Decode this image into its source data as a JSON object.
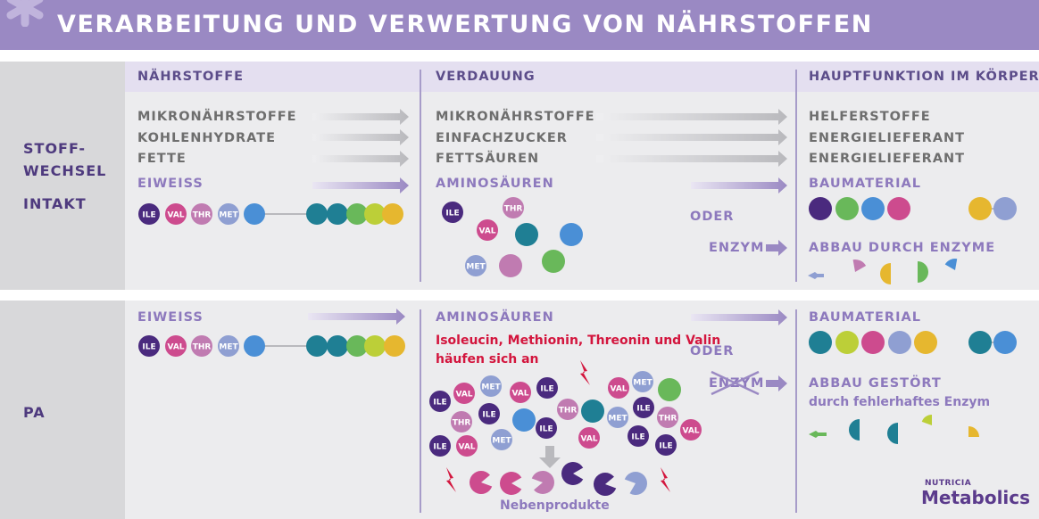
{
  "title": "VERARBEITUNG UND VERWERTUNG VON NÄHRSTOFFEN",
  "columns": {
    "naehrstoffe": "NÄHRSTOFFE",
    "verdauung": "VERDAUUNG",
    "hauptfunktion": "HAUPTFUNKTION IM KÖRPER"
  },
  "row1": {
    "label_line1": "STOFF-",
    "label_line2": "WECHSEL",
    "label_line3": "INTAKT",
    "nutrients": [
      "MIKRONÄHRSTOFFE",
      "KOHLENHYDRATE",
      "FETTE",
      "EIWEISS"
    ],
    "digestion": [
      "MIKRONÄHRSTOFFE",
      "EINFACHZUCKER",
      "FETTSÄUREN",
      "AMINOSÄUREN"
    ],
    "functions": [
      "HELFERSTOFFE",
      "ENERGIELIEFERANT",
      "ENERGIELIEFERANT",
      "BAUMATERIAL"
    ],
    "oder": "ODER",
    "enzym": "ENZYM",
    "abbau": "ABBAU DURCH ENZYME"
  },
  "row2": {
    "label": "PA",
    "eiweiss": "EIWEISS",
    "aminosaeuren": "AMINOSÄUREN",
    "warning_line1": "Isoleucin, Methionin, Threonin und Valin",
    "warning_line2": "häufen sich an",
    "oder": "ODER",
    "enzym": "ENZYM",
    "baumaterial": "BAUMATERIAL",
    "abbau_gestoert": "ABBAU GESTÖRT",
    "enzym_fehler": "durch fehlerhaftes Enzym",
    "nebenprodukte": "Nebenprodukte"
  },
  "amino_labels": {
    "ile": "ILE",
    "val": "VAL",
    "thr": "THR",
    "met": "MET"
  },
  "colors": {
    "banner": "#9a89c3",
    "ile": "#4a2a7e",
    "val": "#cd4b8e",
    "thr": "#c07bb1",
    "met": "#8f9fd2",
    "blue": "#4a8fd6",
    "teal": "#1f7f94",
    "green": "#69b85a",
    "lime": "#bccf38",
    "yellow": "#e6b72f",
    "warning": "#d3153d"
  },
  "logo": {
    "pre": "NUTRICIA",
    "name": "Metabolics"
  }
}
